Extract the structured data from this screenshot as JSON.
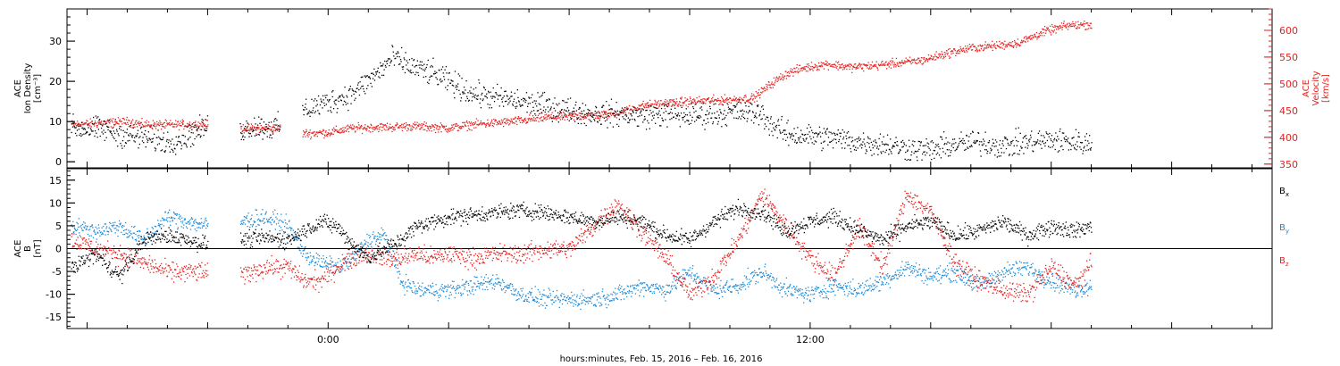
{
  "colors": {
    "density": "#000000",
    "velocity": "#e8211f",
    "bx": "#000000",
    "by": "#1a8ad8",
    "bz": "#e8211f",
    "axis": "#000000"
  },
  "footer_label": "hours:minutes, Feb. 15, 2016 – Feb. 16, 2016",
  "chart_data": [
    {
      "type": "scatter",
      "panel": "top",
      "x_unit": "hours since Feb. 15 00:00",
      "xlim": [
        -6.5,
        23.5
      ],
      "x_tick_labels": [
        {
          "x": 0,
          "label": "0:00"
        },
        {
          "x": 12,
          "label": "12:00"
        }
      ],
      "left_axis": {
        "label_lines": [
          "ACE",
          "Ion Density",
          "[cm⁻³]"
        ],
        "ylim": [
          -1.5,
          38
        ],
        "ticks": [
          0,
          10,
          20,
          30
        ]
      },
      "right_axis": {
        "label_lines": [
          "ACE",
          "Velocity",
          "[km/s]"
        ],
        "ylim": [
          343,
          640
        ],
        "ticks": [
          350,
          400,
          450,
          500,
          550,
          600
        ]
      },
      "gaps": [
        [
          -3.0,
          -2.2
        ],
        [
          -1.2,
          -0.65
        ]
      ],
      "series": [
        {
          "axis": "left",
          "color_key": "density",
          "points": [
            [
              -6.4,
              8.5
            ],
            [
              -5.5,
              8.0
            ],
            [
              -5.0,
              6.5
            ],
            [
              -4.6,
              6.0
            ],
            [
              -4.0,
              5.0
            ],
            [
              -3.5,
              6.5
            ],
            [
              -3.0,
              9.0
            ],
            [
              -2.2,
              8.0
            ],
            [
              -1.8,
              9.0
            ],
            [
              -1.4,
              8.5
            ],
            [
              -1.2,
              9.0
            ],
            [
              -0.6,
              13.0
            ],
            [
              0.0,
              15.0
            ],
            [
              0.6,
              17.0
            ],
            [
              1.2,
              22.0
            ],
            [
              1.6,
              26.0
            ],
            [
              2.0,
              24.0
            ],
            [
              2.6,
              22.0
            ],
            [
              3.0,
              20.0
            ],
            [
              3.6,
              17.0
            ],
            [
              4.2,
              16.0
            ],
            [
              4.8,
              15.0
            ],
            [
              5.4,
              14.0
            ],
            [
              6.0,
              13.0
            ],
            [
              6.6,
              12.0
            ],
            [
              7.2,
              12.0
            ],
            [
              7.8,
              11.5
            ],
            [
              8.4,
              12.0
            ],
            [
              9.0,
              11.5
            ],
            [
              9.6,
              12.0
            ],
            [
              10.2,
              12.5
            ],
            [
              10.8,
              12.0
            ],
            [
              11.0,
              9.5
            ],
            [
              11.4,
              7.0
            ],
            [
              12.0,
              6.5
            ],
            [
              12.6,
              6.0
            ],
            [
              13.2,
              5.0
            ],
            [
              13.8,
              4.5
            ],
            [
              14.4,
              3.5
            ],
            [
              15.0,
              3.0
            ],
            [
              15.6,
              4.5
            ],
            [
              16.2,
              5.0
            ],
            [
              16.8,
              4.0
            ],
            [
              17.4,
              5.0
            ],
            [
              18.0,
              5.5
            ],
            [
              18.6,
              5.0
            ],
            [
              19.0,
              4.5
            ]
          ]
        },
        {
          "axis": "right",
          "color_key": "velocity",
          "points": [
            [
              -6.4,
              425
            ],
            [
              -5.5,
              428
            ],
            [
              -5.0,
              430
            ],
            [
              -4.6,
              425
            ],
            [
              -4.0,
              424
            ],
            [
              -3.5,
              425
            ],
            [
              -3.0,
              424
            ],
            [
              -2.2,
              418
            ],
            [
              -1.8,
              417
            ],
            [
              -1.4,
              418
            ],
            [
              -1.2,
              418
            ],
            [
              -0.6,
              408
            ],
            [
              0.0,
              410
            ],
            [
              0.6,
              418
            ],
            [
              1.2,
              420
            ],
            [
              1.6,
              420
            ],
            [
              2.0,
              422
            ],
            [
              2.6,
              420
            ],
            [
              3.0,
              418
            ],
            [
              3.6,
              425
            ],
            [
              4.2,
              428
            ],
            [
              4.8,
              432
            ],
            [
              5.4,
              438
            ],
            [
              6.0,
              440
            ],
            [
              6.6,
              442
            ],
            [
              7.2,
              446
            ],
            [
              7.8,
              460
            ],
            [
              8.4,
              465
            ],
            [
              9.0,
              468
            ],
            [
              9.6,
              470
            ],
            [
              10.2,
              472
            ],
            [
              10.6,
              475
            ],
            [
              11.0,
              500
            ],
            [
              11.4,
              520
            ],
            [
              11.8,
              530
            ],
            [
              12.4,
              538
            ],
            [
              13.0,
              532
            ],
            [
              13.6,
              535
            ],
            [
              14.2,
              540
            ],
            [
              14.8,
              545
            ],
            [
              15.4,
              558
            ],
            [
              16.0,
              568
            ],
            [
              16.6,
              572
            ],
            [
              17.2,
              578
            ],
            [
              17.8,
              598
            ],
            [
              18.4,
              610
            ],
            [
              19.0,
              612
            ]
          ]
        }
      ]
    },
    {
      "type": "scatter",
      "panel": "bottom",
      "x_unit": "hours since Feb. 15 00:00",
      "xlim": [
        -6.5,
        23.5
      ],
      "x_tick_labels": [
        {
          "x": 0,
          "label": "0:00"
        },
        {
          "x": 12,
          "label": "12:00"
        }
      ],
      "left_axis": {
        "label_lines": [
          "ACE",
          "B",
          "[nT]"
        ],
        "ylim": [
          -17.5,
          17.5
        ],
        "ticks": [
          -15,
          -10,
          -5,
          0,
          5,
          10,
          15
        ]
      },
      "zero_line": true,
      "gaps": [
        [
          -3.0,
          -2.2
        ]
      ],
      "legend": [
        {
          "label": "B",
          "subscript": "x",
          "color_key": "bx"
        },
        {
          "label": "B",
          "subscript": "y",
          "color_key": "by"
        },
        {
          "label": "B",
          "subscript": "z",
          "color_key": "bz"
        }
      ],
      "series": [
        {
          "name": "Bx",
          "color_key": "bx",
          "points": [
            [
              -6.4,
              -4
            ],
            [
              -5.8,
              -1
            ],
            [
              -5.2,
              -6
            ],
            [
              -4.6,
              2
            ],
            [
              -4.0,
              3
            ],
            [
              -3.5,
              2
            ],
            [
              -3.0,
              1
            ],
            [
              -2.2,
              2
            ],
            [
              -1.6,
              2.5
            ],
            [
              -1.0,
              2
            ],
            [
              -0.6,
              4
            ],
            [
              -0.2,
              6
            ],
            [
              0.2,
              5
            ],
            [
              0.6,
              1
            ],
            [
              1.0,
              -2
            ],
            [
              1.4,
              0
            ],
            [
              1.8,
              2
            ],
            [
              2.2,
              5
            ],
            [
              2.6,
              6
            ],
            [
              3.0,
              7
            ],
            [
              3.6,
              7.5
            ],
            [
              4.2,
              8
            ],
            [
              4.8,
              8.5
            ],
            [
              5.4,
              8
            ],
            [
              6.0,
              7
            ],
            [
              6.6,
              6
            ],
            [
              7.2,
              7
            ],
            [
              7.8,
              6
            ],
            [
              8.4,
              3
            ],
            [
              9.0,
              2
            ],
            [
              9.6,
              6
            ],
            [
              10.2,
              9
            ],
            [
              10.8,
              8
            ],
            [
              11.4,
              4
            ],
            [
              12.0,
              6
            ],
            [
              12.6,
              7
            ],
            [
              13.2,
              4
            ],
            [
              13.8,
              2
            ],
            [
              14.4,
              5
            ],
            [
              15.0,
              6
            ],
            [
              15.6,
              3
            ],
            [
              16.2,
              4
            ],
            [
              16.8,
              6
            ],
            [
              17.4,
              3
            ],
            [
              18.0,
              5
            ],
            [
              18.6,
              4
            ],
            [
              19.0,
              5
            ]
          ]
        },
        {
          "name": "By",
          "color_key": "by",
          "points": [
            [
              -6.4,
              5
            ],
            [
              -5.8,
              4
            ],
            [
              -5.2,
              5
            ],
            [
              -4.6,
              2
            ],
            [
              -4.0,
              7
            ],
            [
              -3.5,
              6
            ],
            [
              -3.0,
              5
            ],
            [
              -2.2,
              6
            ],
            [
              -1.6,
              7
            ],
            [
              -1.0,
              5
            ],
            [
              -0.6,
              -1
            ],
            [
              -0.2,
              -3
            ],
            [
              0.2,
              -4
            ],
            [
              0.6,
              -2
            ],
            [
              1.0,
              2
            ],
            [
              1.4,
              3
            ],
            [
              1.8,
              -7
            ],
            [
              2.2,
              -9
            ],
            [
              2.6,
              -9
            ],
            [
              3.0,
              -9
            ],
            [
              3.6,
              -8
            ],
            [
              4.2,
              -7
            ],
            [
              4.8,
              -10
            ],
            [
              5.4,
              -11
            ],
            [
              6.0,
              -11
            ],
            [
              6.6,
              -11
            ],
            [
              7.2,
              -10
            ],
            [
              7.8,
              -8
            ],
            [
              8.4,
              -9
            ],
            [
              9.0,
              -5
            ],
            [
              9.6,
              -9
            ],
            [
              10.2,
              -8
            ],
            [
              10.8,
              -5
            ],
            [
              11.4,
              -9
            ],
            [
              12.0,
              -10
            ],
            [
              12.6,
              -8
            ],
            [
              13.2,
              -9
            ],
            [
              13.8,
              -7
            ],
            [
              14.4,
              -4
            ],
            [
              15.0,
              -6
            ],
            [
              15.6,
              -5
            ],
            [
              16.2,
              -8
            ],
            [
              16.8,
              -5
            ],
            [
              17.4,
              -4
            ],
            [
              18.0,
              -7
            ],
            [
              18.6,
              -9
            ],
            [
              19.0,
              -8
            ]
          ]
        },
        {
          "name": "Bz",
          "color_key": "bz",
          "points": [
            [
              -6.4,
              2
            ],
            [
              -5.8,
              0
            ],
            [
              -5.2,
              -1
            ],
            [
              -4.6,
              -3
            ],
            [
              -4.0,
              -5
            ],
            [
              -3.5,
              -5
            ],
            [
              -3.0,
              -5
            ],
            [
              -2.2,
              -6
            ],
            [
              -1.6,
              -4
            ],
            [
              -1.0,
              -4
            ],
            [
              -0.6,
              -7
            ],
            [
              -0.2,
              -7
            ],
            [
              0.2,
              -4
            ],
            [
              0.6,
              -2
            ],
            [
              1.0,
              -1
            ],
            [
              1.4,
              -2
            ],
            [
              1.8,
              -2
            ],
            [
              2.2,
              -1
            ],
            [
              2.6,
              -2
            ],
            [
              3.0,
              -1
            ],
            [
              3.6,
              -2
            ],
            [
              4.2,
              -1
            ],
            [
              4.8,
              -1
            ],
            [
              5.4,
              0
            ],
            [
              6.0,
              0
            ],
            [
              6.6,
              5
            ],
            [
              7.2,
              10
            ],
            [
              7.8,
              4
            ],
            [
              8.4,
              -2
            ],
            [
              9.0,
              -10
            ],
            [
              9.6,
              -6
            ],
            [
              10.2,
              2
            ],
            [
              10.8,
              12
            ],
            [
              11.4,
              5
            ],
            [
              12.0,
              -2
            ],
            [
              12.6,
              -6
            ],
            [
              13.2,
              5
            ],
            [
              13.8,
              -4
            ],
            [
              14.4,
              12
            ],
            [
              15.0,
              8
            ],
            [
              15.6,
              -3
            ],
            [
              16.2,
              -7
            ],
            [
              16.8,
              -9
            ],
            [
              17.4,
              -10
            ],
            [
              18.0,
              -4
            ],
            [
              18.6,
              -8
            ],
            [
              19.0,
              -3
            ]
          ]
        }
      ]
    }
  ]
}
